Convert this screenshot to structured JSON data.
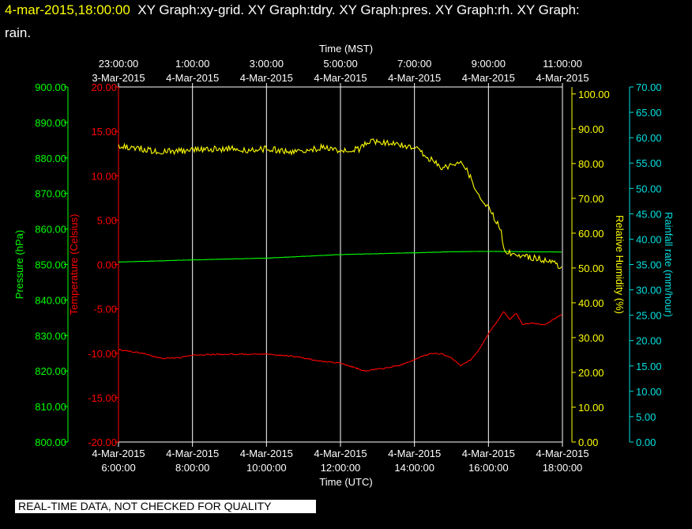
{
  "header": {
    "datetime": "4-mar-2015,18:00:00",
    "graphs_line1": "XY Graph:xy-grid.  XY Graph:tdry.  XY Graph:pres.  XY Graph:rh.  XY Graph:",
    "graphs_line2": "rain."
  },
  "banner": "REAL-TIME DATA, NOT CHECKED FOR QUALITY",
  "colors": {
    "pressure": "#00ff00",
    "temperature": "#ff0000",
    "humidity": "#ffff00",
    "rainfall": "#00e0e0",
    "grid": "#ffffff",
    "text": "#ffffff",
    "header_date": "#ffff00"
  },
  "chart_data": {
    "type": "line",
    "grid": true,
    "x_bottom": {
      "label": "Time (UTC)",
      "range": [
        "2015-03-04 06:00",
        "2015-03-04 18:00"
      ],
      "ticks": [
        {
          "t": "2015-03-04 06:00",
          "date": "4-Mar-2015",
          "time": "6:00:00"
        },
        {
          "t": "2015-03-04 08:00",
          "date": "4-Mar-2015",
          "time": "8:00:00"
        },
        {
          "t": "2015-03-04 10:00",
          "date": "4-Mar-2015",
          "time": "10:00:00"
        },
        {
          "t": "2015-03-04 12:00",
          "date": "4-Mar-2015",
          "time": "12:00:00"
        },
        {
          "t": "2015-03-04 14:00",
          "date": "4-Mar-2015",
          "time": "14:00:00"
        },
        {
          "t": "2015-03-04 16:00",
          "date": "4-Mar-2015",
          "time": "16:00:00"
        },
        {
          "t": "2015-03-04 18:00",
          "date": "4-Mar-2015",
          "time": "18:00:00"
        }
      ]
    },
    "x_top": {
      "label": "Time (MST)",
      "ticks": [
        {
          "t": "2015-03-04 06:00",
          "time": "23:00:00",
          "date": "3-Mar-2015"
        },
        {
          "t": "2015-03-04 08:00",
          "time": "1:00:00",
          "date": "4-Mar-2015"
        },
        {
          "t": "2015-03-04 10:00",
          "time": "3:00:00",
          "date": "4-Mar-2015"
        },
        {
          "t": "2015-03-04 12:00",
          "time": "5:00:00",
          "date": "4-Mar-2015"
        },
        {
          "t": "2015-03-04 14:00",
          "time": "7:00:00",
          "date": "4-Mar-2015"
        },
        {
          "t": "2015-03-04 16:00",
          "time": "9:00:00",
          "date": "4-Mar-2015"
        },
        {
          "t": "2015-03-04 18:00",
          "time": "11:00:00",
          "date": "4-Mar-2015"
        }
      ]
    },
    "y_axes": [
      {
        "key": "pressure",
        "label": "Pressure (hPa)",
        "range": [
          800,
          900
        ],
        "side": "left-outer",
        "ticks": [
          "800.00",
          "810.00",
          "820.00",
          "830.00",
          "840.00",
          "850.00",
          "860.00",
          "870.00",
          "880.00",
          "890.00",
          "900.00"
        ]
      },
      {
        "key": "temperature",
        "label": "Temperature (Celsius)",
        "range": [
          -20,
          20
        ],
        "side": "left-inner",
        "ticks": [
          "-20.00",
          "-15.00",
          "-10.00",
          "-5.00",
          "0.00",
          "5.00",
          "10.00",
          "15.00",
          "20.00"
        ]
      },
      {
        "key": "humidity",
        "label": "Relative Humidity (%)",
        "range": [
          0,
          102
        ],
        "side": "right-inner",
        "ticks": [
          "0.00",
          "10.00",
          "20.00",
          "30.00",
          "40.00",
          "50.00",
          "60.00",
          "70.00",
          "80.00",
          "90.00",
          "100.00"
        ]
      },
      {
        "key": "rainfall",
        "label": "Rainfall rate (mm/hour)",
        "range": [
          0,
          70
        ],
        "side": "right-outer",
        "ticks": [
          "0.00",
          "5.00",
          "10.00",
          "15.00",
          "20.00",
          "25.00",
          "30.00",
          "35.00",
          "40.00",
          "45.00",
          "50.00",
          "55.00",
          "60.00",
          "65.00",
          "70.00"
        ]
      }
    ],
    "series": [
      {
        "key": "temperature",
        "axis": "temperature",
        "noise": 0.08,
        "points": [
          [
            "2015-03-04 06:00",
            -9.6
          ],
          [
            "2015-03-04 06:40",
            -10.0
          ],
          [
            "2015-03-04 07:10",
            -10.6
          ],
          [
            "2015-03-04 07:40",
            -10.5
          ],
          [
            "2015-03-04 08:00",
            -10.2
          ],
          [
            "2015-03-04 09:00",
            -10.1
          ],
          [
            "2015-03-04 10:00",
            -10.1
          ],
          [
            "2015-03-04 10:50",
            -10.4
          ],
          [
            "2015-03-04 11:30",
            -10.9
          ],
          [
            "2015-03-04 12:00",
            -11.1
          ],
          [
            "2015-03-04 12:40",
            -12.0
          ],
          [
            "2015-03-04 13:10",
            -11.7
          ],
          [
            "2015-03-04 13:40",
            -11.3
          ],
          [
            "2015-03-04 14:10",
            -10.4
          ],
          [
            "2015-03-04 14:30",
            -10.0
          ],
          [
            "2015-03-04 14:45",
            -10.1
          ],
          [
            "2015-03-04 15:00",
            -10.5
          ],
          [
            "2015-03-04 15:15",
            -11.4
          ],
          [
            "2015-03-04 15:30",
            -10.8
          ],
          [
            "2015-03-04 15:45",
            -9.6
          ],
          [
            "2015-03-04 16:00",
            -7.8
          ],
          [
            "2015-03-04 16:15",
            -6.3
          ],
          [
            "2015-03-04 16:25",
            -5.3
          ],
          [
            "2015-03-04 16:35",
            -6.2
          ],
          [
            "2015-03-04 16:45",
            -5.4
          ],
          [
            "2015-03-04 16:55",
            -6.8
          ],
          [
            "2015-03-04 17:10",
            -6.6
          ],
          [
            "2015-03-04 17:30",
            -6.8
          ],
          [
            "2015-03-04 17:45",
            -6.2
          ],
          [
            "2015-03-04 18:00",
            -5.6
          ]
        ]
      },
      {
        "key": "pressure",
        "axis": "pressure",
        "noise": 0.02,
        "points": [
          [
            "2015-03-04 06:00",
            850.7
          ],
          [
            "2015-03-04 08:00",
            851.3
          ],
          [
            "2015-03-04 10:00",
            851.8
          ],
          [
            "2015-03-04 12:00",
            852.8
          ],
          [
            "2015-03-04 14:00",
            853.3
          ],
          [
            "2015-03-04 15:00",
            853.6
          ],
          [
            "2015-03-04 16:00",
            853.7
          ],
          [
            "2015-03-04 17:00",
            853.6
          ],
          [
            "2015-03-04 18:00",
            853.5
          ]
        ]
      },
      {
        "key": "humidity",
        "axis": "humidity",
        "noise": 0.45,
        "points": [
          [
            "2015-03-04 06:00",
            84.8
          ],
          [
            "2015-03-04 06:30",
            84.6
          ],
          [
            "2015-03-04 07:00",
            83.3
          ],
          [
            "2015-03-04 07:30",
            83.5
          ],
          [
            "2015-03-04 08:00",
            84.0
          ],
          [
            "2015-03-04 09:00",
            84.3
          ],
          [
            "2015-03-04 09:30",
            83.6
          ],
          [
            "2015-03-04 10:00",
            84.3
          ],
          [
            "2015-03-04 10:40",
            83.3
          ],
          [
            "2015-03-04 11:30",
            84.6
          ],
          [
            "2015-03-04 12:00",
            83.6
          ],
          [
            "2015-03-04 12:30",
            84.2
          ],
          [
            "2015-03-04 12:50",
            86.5
          ],
          [
            "2015-03-04 13:30",
            85.6
          ],
          [
            "2015-03-04 14:00",
            84.6
          ],
          [
            "2015-03-04 14:20",
            82.0
          ],
          [
            "2015-03-04 14:45",
            78.5
          ],
          [
            "2015-03-04 15:00",
            79.6
          ],
          [
            "2015-03-04 15:15",
            80.5
          ],
          [
            "2015-03-04 15:30",
            76.5
          ],
          [
            "2015-03-04 15:45",
            70.5
          ],
          [
            "2015-03-04 16:05",
            66.0
          ],
          [
            "2015-03-04 16:20",
            61.0
          ],
          [
            "2015-03-04 16:25",
            55.0
          ],
          [
            "2015-03-04 16:50",
            53.5
          ],
          [
            "2015-03-04 17:20",
            52.8
          ],
          [
            "2015-03-04 17:50",
            51.0
          ],
          [
            "2015-03-04 18:00",
            49.6
          ]
        ]
      }
    ]
  }
}
